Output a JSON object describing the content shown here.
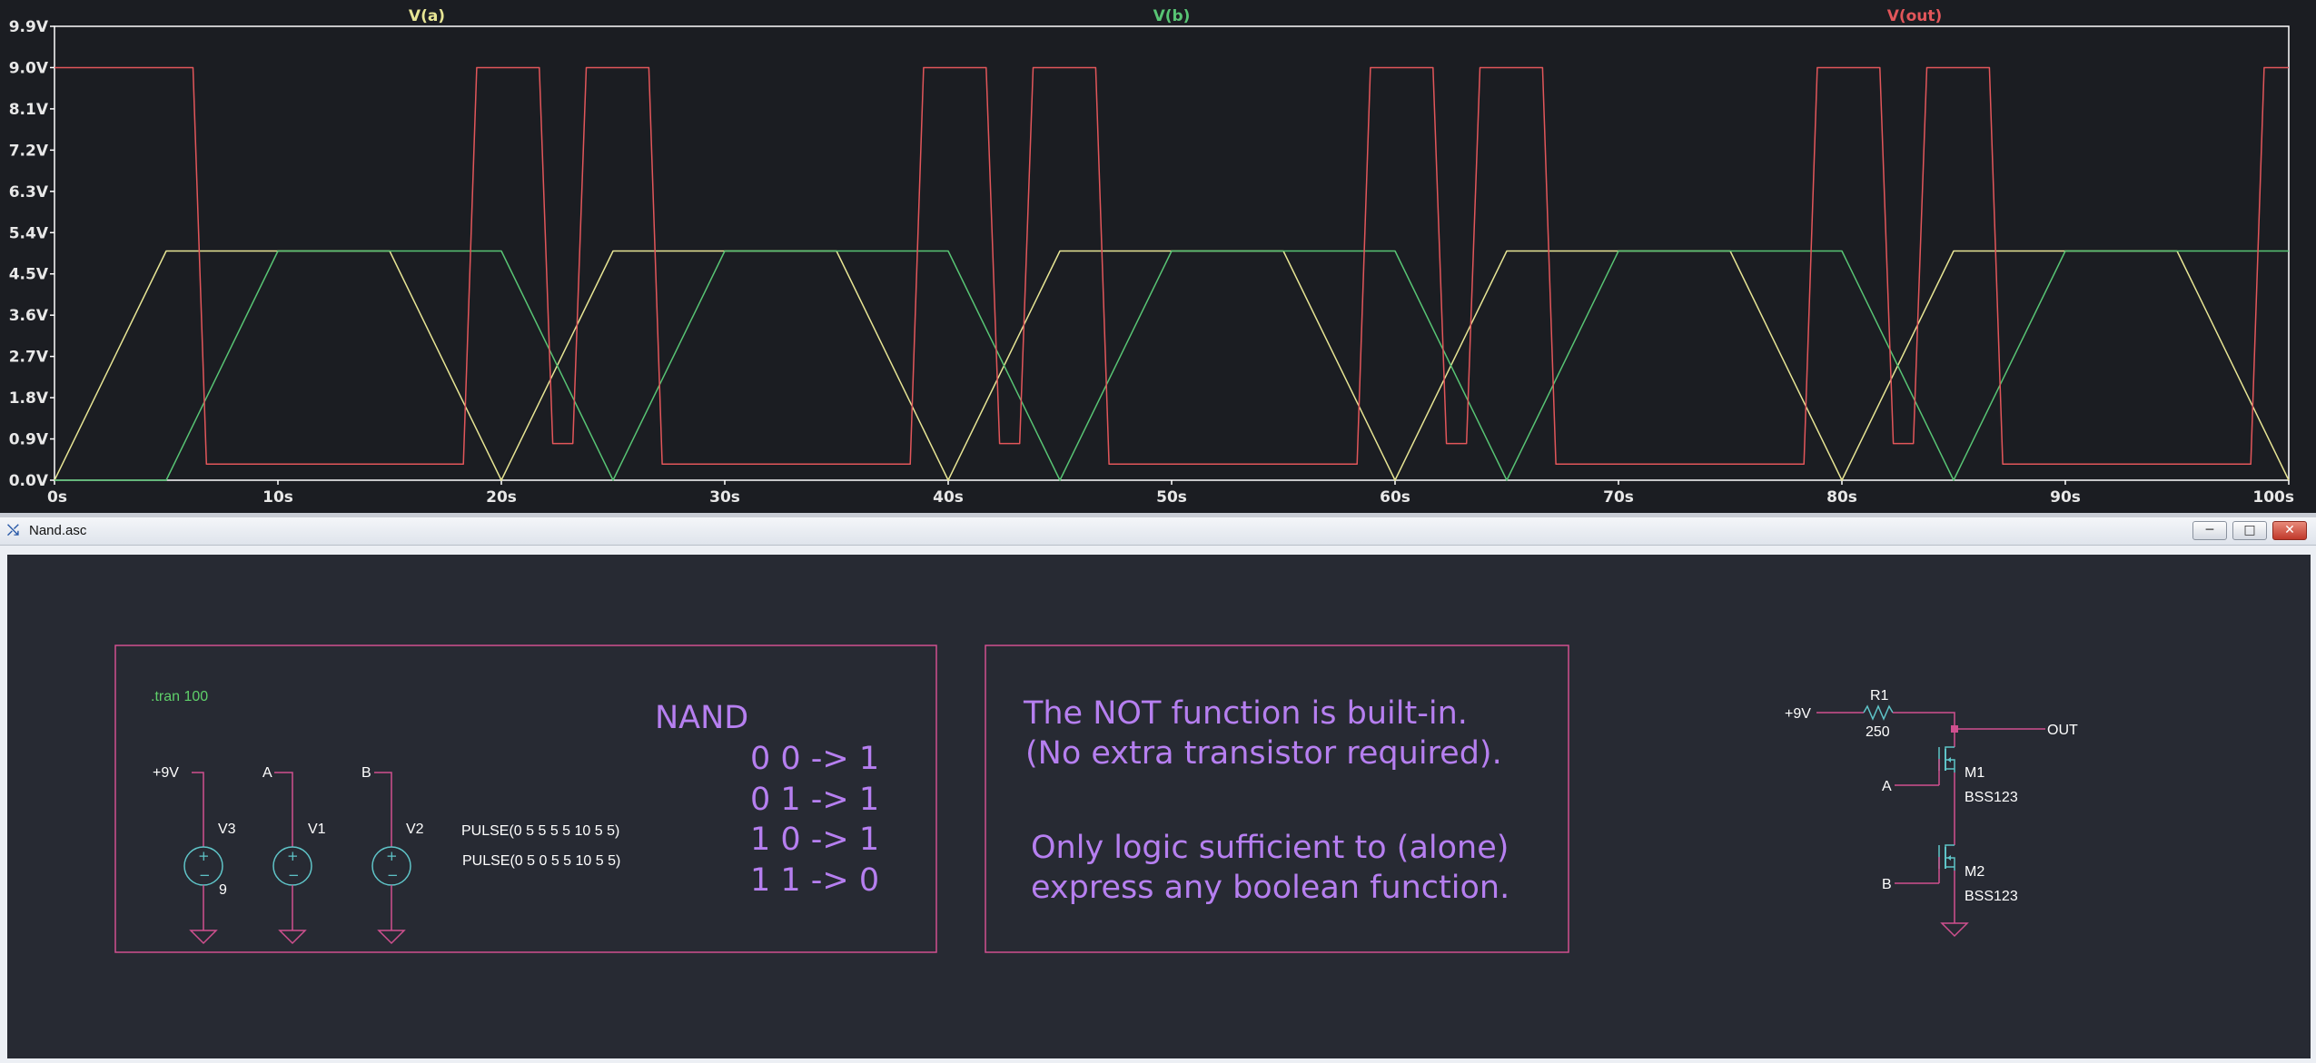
{
  "plot_window": {
    "colors": {
      "bg": "#1b1d22",
      "border": "#ffffff",
      "va": "#e7e594",
      "vb": "#58c474",
      "vout": "#e2565a"
    },
    "chart_data": {
      "type": "line",
      "title": "",
      "xlabel": "",
      "ylabel": "",
      "xlim": [
        0,
        100
      ],
      "ylim": [
        0,
        9.9
      ],
      "x_ticks": [
        "0s",
        "10s",
        "20s",
        "30s",
        "40s",
        "50s",
        "60s",
        "70s",
        "80s",
        "90s",
        "100s"
      ],
      "y_ticks": [
        "0.0V",
        "0.9V",
        "1.8V",
        "2.7V",
        "3.6V",
        "4.5V",
        "5.4V",
        "6.3V",
        "7.2V",
        "8.1V",
        "9.0V",
        "9.9V"
      ],
      "series": [
        {
          "name": "V(a)",
          "color": "#e7e594",
          "x": [
            0,
            5,
            15,
            20,
            25,
            35,
            40,
            45,
            55,
            60,
            65,
            75,
            80,
            85,
            95,
            100
          ],
          "y": [
            0,
            5,
            5,
            0,
            5,
            5,
            0,
            5,
            5,
            0,
            5,
            5,
            0,
            5,
            5,
            0
          ]
        },
        {
          "name": "V(b)",
          "color": "#58c474",
          "x": [
            0,
            5,
            10,
            20,
            25,
            30,
            40,
            45,
            50,
            60,
            65,
            70,
            80,
            85,
            90,
            100
          ],
          "y": [
            0,
            0,
            5,
            5,
            0,
            5,
            5,
            0,
            5,
            5,
            0,
            5,
            5,
            0,
            5,
            5
          ]
        },
        {
          "name": "V(out)",
          "color": "#e2565a",
          "x": [
            0,
            6.2,
            6.8,
            18.3,
            18.9,
            21.7,
            22.3,
            23.2,
            23.8,
            26.6,
            27.2,
            38.3,
            38.9,
            41.7,
            42.3,
            43.2,
            43.8,
            46.6,
            47.2,
            58.3,
            58.9,
            61.7,
            62.3,
            63.2,
            63.8,
            66.6,
            67.2,
            78.3,
            78.9,
            81.7,
            82.3,
            83.2,
            83.8,
            86.6,
            87.2,
            98.3,
            98.9,
            100
          ],
          "y": [
            9,
            9,
            0.35,
            0.35,
            9,
            9,
            0.8,
            0.8,
            9,
            9,
            0.35,
            0.35,
            9,
            9,
            0.8,
            0.8,
            9,
            9,
            0.35,
            0.35,
            9,
            9,
            0.8,
            0.8,
            9,
            9,
            0.35,
            0.35,
            9,
            9,
            0.8,
            0.8,
            9,
            9,
            0.35,
            0.35,
            9,
            9
          ]
        }
      ]
    }
  },
  "schematic_window": {
    "title": "Nand.asc",
    "icon": "ltspice-icon",
    "buttons": {
      "minimize": "─",
      "maximize": "□",
      "close": "✕"
    },
    "colors": {
      "canvas": "#272a33",
      "wire": "#d0508f",
      "component": "#5fc4c8",
      "directive": "#5fd06a",
      "comment": "#b67ff0",
      "text": "#ffffff"
    },
    "directive": ".tran 100",
    "sources": [
      {
        "net": "+9V",
        "name": "V3",
        "value": "9"
      },
      {
        "net": "A",
        "name": "V1",
        "value": ""
      },
      {
        "net": "B",
        "name": "V2",
        "value": ""
      }
    ],
    "pulse_a": "PULSE(0 5 5 5 5 10 5 5)",
    "pulse_b": "PULSE(0 5 0 5 5 10 5 5)",
    "truth_title": "NAND",
    "truth_rows": [
      "0 0 -> 1",
      "0 1 -> 1",
      "1 0 -> 1",
      "1 1 -> 0"
    ],
    "note_lines": [
      "The NOT function is built-in.",
      "(No extra transistor required).",
      "Only logic sufficient to (alone)",
      "express any boolean function."
    ],
    "circuit": {
      "supply": "+9V",
      "resistor_name": "R1",
      "resistor_value": "250",
      "output": "OUT",
      "m1_name": "M1",
      "m1_model": "BSS123",
      "m2_name": "M2",
      "m2_model": "BSS123",
      "input_a": "A",
      "input_b": "B"
    }
  }
}
